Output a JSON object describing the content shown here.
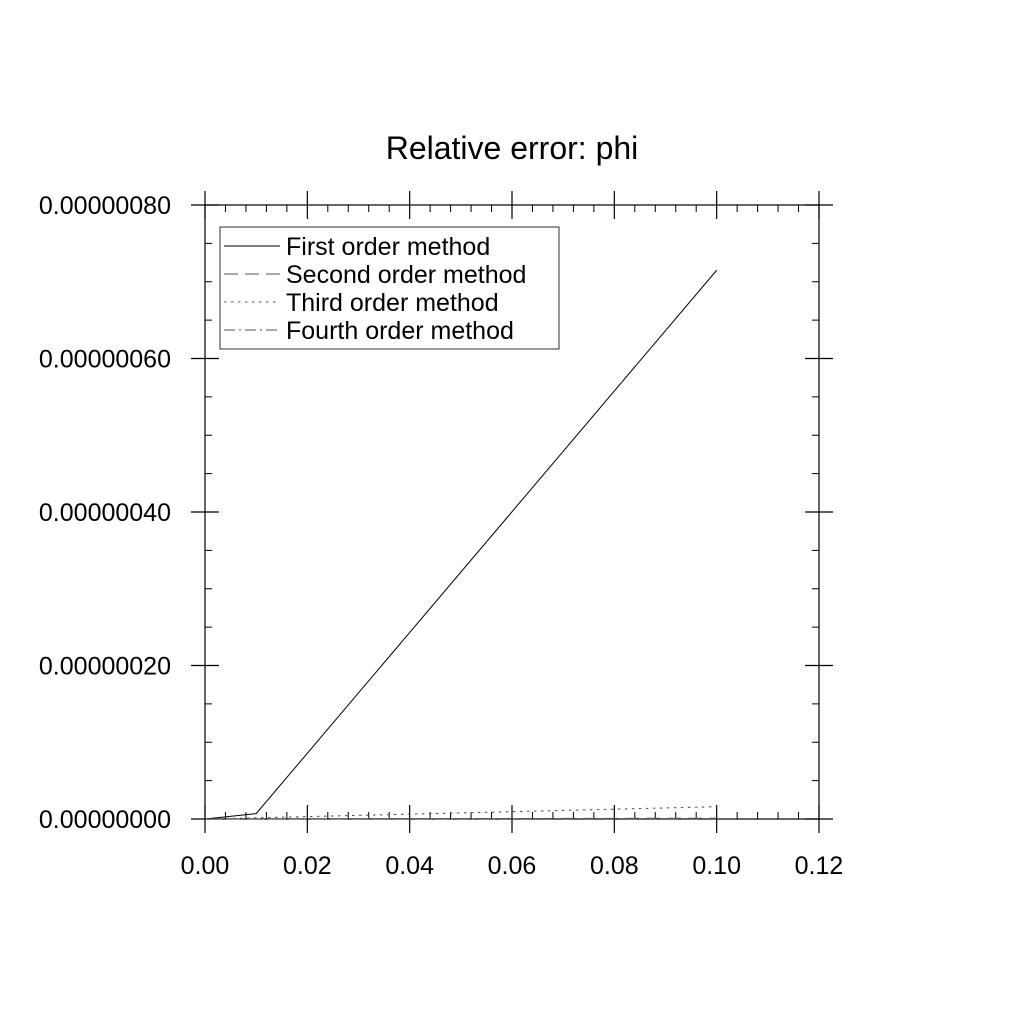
{
  "chart_data": {
    "type": "line",
    "title": "Relative error: phi",
    "xlabel": "",
    "ylabel": "",
    "xlim": [
      0.0,
      0.12
    ],
    "ylim": [
      0.0,
      8e-07
    ],
    "x_ticks": [
      "0.00",
      "0.02",
      "0.04",
      "0.06",
      "0.08",
      "0.10",
      "0.12"
    ],
    "x_tick_values": [
      0.0,
      0.02,
      0.04,
      0.06,
      0.08,
      0.1,
      0.12
    ],
    "y_ticks": [
      "0.00000000",
      "0.00000020",
      "0.00000040",
      "0.00000060",
      "0.00000080"
    ],
    "y_tick_values": [
      0.0,
      2e-07,
      4e-07,
      6e-07,
      8e-07
    ],
    "x_minor_step": 0.004,
    "y_minor_step": 5e-08,
    "grid": false,
    "legend_position": "top-left",
    "series": [
      {
        "name": "First order method",
        "dash": "solid",
        "color": "#000000",
        "x": [
          0.0,
          0.01,
          0.1
        ],
        "y": [
          0.0,
          7e-09,
          7.15e-07
        ]
      },
      {
        "name": "Second order method",
        "dash": "dashed",
        "color": "#555555",
        "x": [
          0.0,
          0.01,
          0.1
        ],
        "y": [
          0.0,
          1e-10,
          1e-09
        ]
      },
      {
        "name": "Third order method",
        "dash": "dotted",
        "color": "#555555",
        "x": [
          0.0,
          0.01,
          0.1
        ],
        "y": [
          0.0,
          1.5e-09,
          1.6e-08
        ]
      },
      {
        "name": "Fourth order method",
        "dash": "dashdot",
        "color": "#555555",
        "x": [
          0.0,
          0.01,
          0.1
        ],
        "y": [
          0.0,
          1e-10,
          5e-10
        ]
      }
    ]
  }
}
